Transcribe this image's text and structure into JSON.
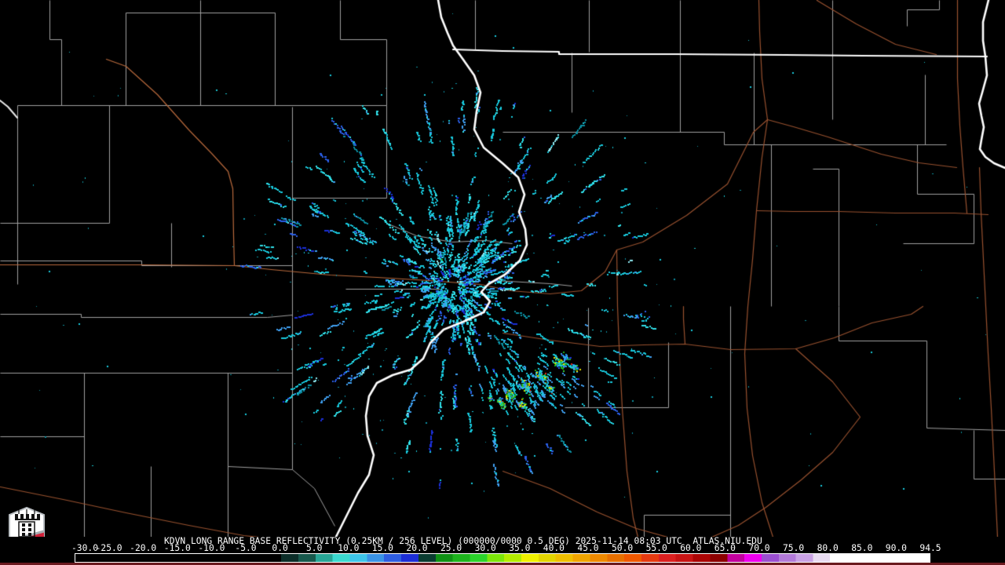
{
  "caption": {
    "text": "KDVN LONG RANGE BASE REFLECTIVITY (0.25KM / 256 LEVEL) (000000/0000 0.5 DEG) 2025-11-14 08:03 UTC  ATLAS.NIU.EDU"
  },
  "logo": {
    "text": "NIU"
  },
  "colorbar": {
    "tick_labels": [
      "-30.0",
      "-25.0",
      "-20.0",
      "-15.0",
      "-10.0",
      "-5.0",
      "0.0",
      "5.0",
      "10.0",
      "15.0",
      "20.0",
      "25.0",
      "30.0",
      "35.0",
      "40.0",
      "45.0",
      "50.0",
      "55.0",
      "60.0",
      "65.0",
      "70.0",
      "75.0",
      "80.0",
      "85.0",
      "90.0",
      "94.5"
    ],
    "min_value": -30.0,
    "max_value": 94.5,
    "stops": [
      {
        "v": -30,
        "c": "#000000"
      },
      {
        "v": 0,
        "c": "#0b2d28"
      },
      {
        "v": 2.5,
        "c": "#17584c"
      },
      {
        "v": 5,
        "c": "#28a596"
      },
      {
        "v": 7.5,
        "c": "#3cd9cf"
      },
      {
        "v": 10,
        "c": "#3ec5ea"
      },
      {
        "v": 12.5,
        "c": "#3a93e6"
      },
      {
        "v": 15,
        "c": "#2e5de0"
      },
      {
        "v": 17.5,
        "c": "#1c2ed6"
      },
      {
        "v": 20,
        "c": "#0a3c31"
      },
      {
        "v": 22.5,
        "c": "#0f9114"
      },
      {
        "v": 25,
        "c": "#1db31d"
      },
      {
        "v": 27.5,
        "c": "#2bd22b"
      },
      {
        "v": 30,
        "c": "#7ce40a"
      },
      {
        "v": 32.5,
        "c": "#b4ec00"
      },
      {
        "v": 35,
        "c": "#f0f000"
      },
      {
        "v": 37.5,
        "c": "#e3d400"
      },
      {
        "v": 40,
        "c": "#efbe00"
      },
      {
        "v": 42.5,
        "c": "#f0a400"
      },
      {
        "v": 45,
        "c": "#ee8900"
      },
      {
        "v": 47.5,
        "c": "#e87000"
      },
      {
        "v": 50,
        "c": "#f05800"
      },
      {
        "v": 52.5,
        "c": "#e63a10"
      },
      {
        "v": 55,
        "c": "#dc2020"
      },
      {
        "v": 57.5,
        "c": "#c81414"
      },
      {
        "v": 60,
        "c": "#ab0505"
      },
      {
        "v": 62.5,
        "c": "#8c0000"
      },
      {
        "v": 65,
        "c": "#c2009e"
      },
      {
        "v": 67.5,
        "c": "#ee00ee"
      },
      {
        "v": 70,
        "c": "#9b4fd0"
      },
      {
        "v": 72.5,
        "c": "#b27ad8"
      },
      {
        "v": 75,
        "c": "#c9a2e4"
      },
      {
        "v": 77.5,
        "c": "#e9dcf2"
      },
      {
        "v": 80,
        "c": "#ffffff"
      }
    ]
  },
  "map": {
    "colors": {
      "background": "#000000",
      "county_line": "#a0a0a0",
      "road": "#98512f",
      "road_light": "#b8693c",
      "state_line": "#ffffff",
      "maroon_strip": "#6b1a1f",
      "echo_cyan": "#18c8dc",
      "echo_bright_cyan": "#31e0ea",
      "echo_light_blue": "#3f9ff0",
      "echo_blue": "#2a5fe8",
      "echo_deep_blue": "#1b2fd8",
      "echo_dark_teal": "#0b8ea0",
      "echo_green": "#1db31d",
      "echo_bright_green": "#35d435",
      "echo_yellow": "#e8e400",
      "echo_orange": "#ef9a00",
      "echo_red": "#e02818",
      "logo_red": "#cf2038",
      "logo_gray": "#a7adb2"
    }
  }
}
